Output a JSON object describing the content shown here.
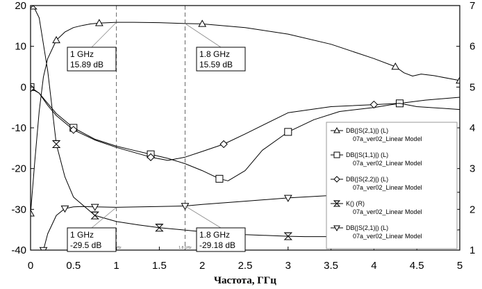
{
  "chart_data": {
    "type": "line",
    "xlabel": "Частота, ГГц",
    "ylabel": "",
    "xlim": [
      0,
      5
    ],
    "ylim": [
      -40,
      20
    ],
    "y2lim": [
      1,
      7
    ],
    "x_ticks": [
      "0",
      "0.5",
      "1",
      "1.5",
      "2",
      "2.5",
      "3",
      "3.5",
      "4",
      "4.5",
      "5"
    ],
    "y_ticks": [
      "-40",
      "-30",
      "-20",
      "-10",
      "0",
      "10",
      "20"
    ],
    "y2_ticks": [
      "1",
      "2",
      "3",
      "4",
      "5",
      "6",
      "7"
    ],
    "grid": false,
    "legend_position": "right",
    "series": [
      {
        "name": "DB(|S(2,1)|) (L)",
        "model": "07a_ver02_Linear Model",
        "marker": "triangle-up",
        "axis": "left",
        "color": "#000000",
        "x": [
          0.0,
          0.05,
          0.1,
          0.15,
          0.2,
          0.3,
          0.4,
          0.5,
          0.6,
          0.7,
          0.8,
          1.0,
          1.2,
          1.5,
          1.8,
          2.0,
          2.5,
          3.0,
          3.5,
          4.0,
          4.25,
          4.35,
          4.45,
          4.55,
          4.7,
          5.0
        ],
        "y": [
          -31.0,
          -18.0,
          -6.0,
          2.5,
          7.0,
          11.5,
          13.5,
          14.6,
          15.1,
          15.5,
          15.7,
          15.89,
          15.9,
          15.8,
          15.59,
          15.5,
          14.6,
          13.0,
          10.5,
          7.0,
          5.0,
          3.5,
          2.7,
          3.2,
          2.8,
          1.6
        ]
      },
      {
        "name": "DB(|S(1,1)|) (L)",
        "model": "07a_ver02_Linear Model",
        "marker": "square",
        "axis": "left",
        "color": "#000000",
        "x": [
          0.0,
          0.1,
          0.2,
          0.3,
          0.5,
          0.75,
          1.0,
          1.2,
          1.4,
          1.6,
          1.8,
          2.0,
          2.2,
          2.3,
          2.5,
          2.7,
          3.0,
          3.3,
          3.6,
          4.0,
          4.3,
          4.6,
          5.0
        ],
        "y": [
          0.0,
          -1.5,
          -4.0,
          -6.5,
          -10.0,
          -12.8,
          -14.5,
          -15.5,
          -16.5,
          -17.5,
          -18.8,
          -20.5,
          -22.5,
          -23.0,
          -20.5,
          -15.5,
          -11.0,
          -8.0,
          -6.0,
          -5.0,
          -4.0,
          -3.2,
          -2.5
        ]
      },
      {
        "name": "DB(|S(2,2)|) (L)",
        "model": "07a_ver02_Linear Model",
        "marker": "diamond",
        "axis": "left",
        "color": "#000000",
        "x": [
          0.0,
          0.1,
          0.2,
          0.3,
          0.5,
          0.75,
          1.0,
          1.2,
          1.4,
          1.6,
          1.8,
          2.0,
          2.25,
          2.5,
          3.0,
          3.5,
          4.0,
          4.3,
          4.5,
          5.0
        ],
        "y": [
          -0.3,
          -1.5,
          -4.5,
          -7.0,
          -10.5,
          -13.0,
          -14.8,
          -16.0,
          -17.2,
          -18.0,
          -17.2,
          -15.8,
          -14.0,
          -11.5,
          -6.3,
          -4.8,
          -4.3,
          -4.0,
          -4.8,
          -5.5
        ]
      },
      {
        "name": "K() (R)",
        "model": "07a_ver02_Linear Model",
        "marker": "hourglass",
        "axis": "right",
        "color": "#000000",
        "x": [
          0.03,
          0.1,
          0.2,
          0.3,
          0.4,
          0.5,
          0.75,
          1.0,
          1.25,
          1.5,
          2.0,
          2.5,
          3.0,
          3.2,
          3.5,
          4.0,
          4.5,
          5.0
        ],
        "y": [
          7.0,
          6.7,
          5.4,
          3.6,
          2.8,
          2.3,
          1.85,
          1.7,
          1.62,
          1.55,
          1.45,
          1.38,
          1.34,
          1.33,
          1.33,
          1.33,
          1.4,
          1.5
        ]
      },
      {
        "name": "DB(|S(2,1)|) (L)",
        "model": "07a_ver02_Linear Model",
        "marker": "triangle-down",
        "axis": "left",
        "color": "#000000",
        "x": [
          0.15,
          0.2,
          0.3,
          0.4,
          0.5,
          0.6,
          0.75,
          1.0,
          1.5,
          1.8,
          2.0,
          2.5,
          3.0,
          3.5,
          4.0,
          4.5,
          5.0
        ],
        "y": [
          -40.0,
          -36.0,
          -31.5,
          -29.8,
          -29.4,
          -29.3,
          -29.4,
          -29.5,
          -29.3,
          -29.18,
          -28.8,
          -28.0,
          -27.2,
          -26.6,
          -26.2,
          -26.0,
          -25.8
        ]
      }
    ],
    "annotations": [
      {
        "text": [
          "1 GHz",
          "15.89 dB"
        ],
        "x": 1.0,
        "y": 15.89
      },
      {
        "text": [
          "1.8 GHz",
          "15.59 dB"
        ],
        "x": 1.8,
        "y": 15.59
      },
      {
        "text": [
          "1 GHz",
          "-29.5 dB"
        ],
        "x": 1.0,
        "y": -29.5
      },
      {
        "text": [
          "1.8 GHz",
          "-29.18 dB"
        ],
        "x": 1.8,
        "y": -29.18
      }
    ],
    "marker_axis_labels": [
      "1 GHz",
      "1.8 GHz"
    ]
  }
}
